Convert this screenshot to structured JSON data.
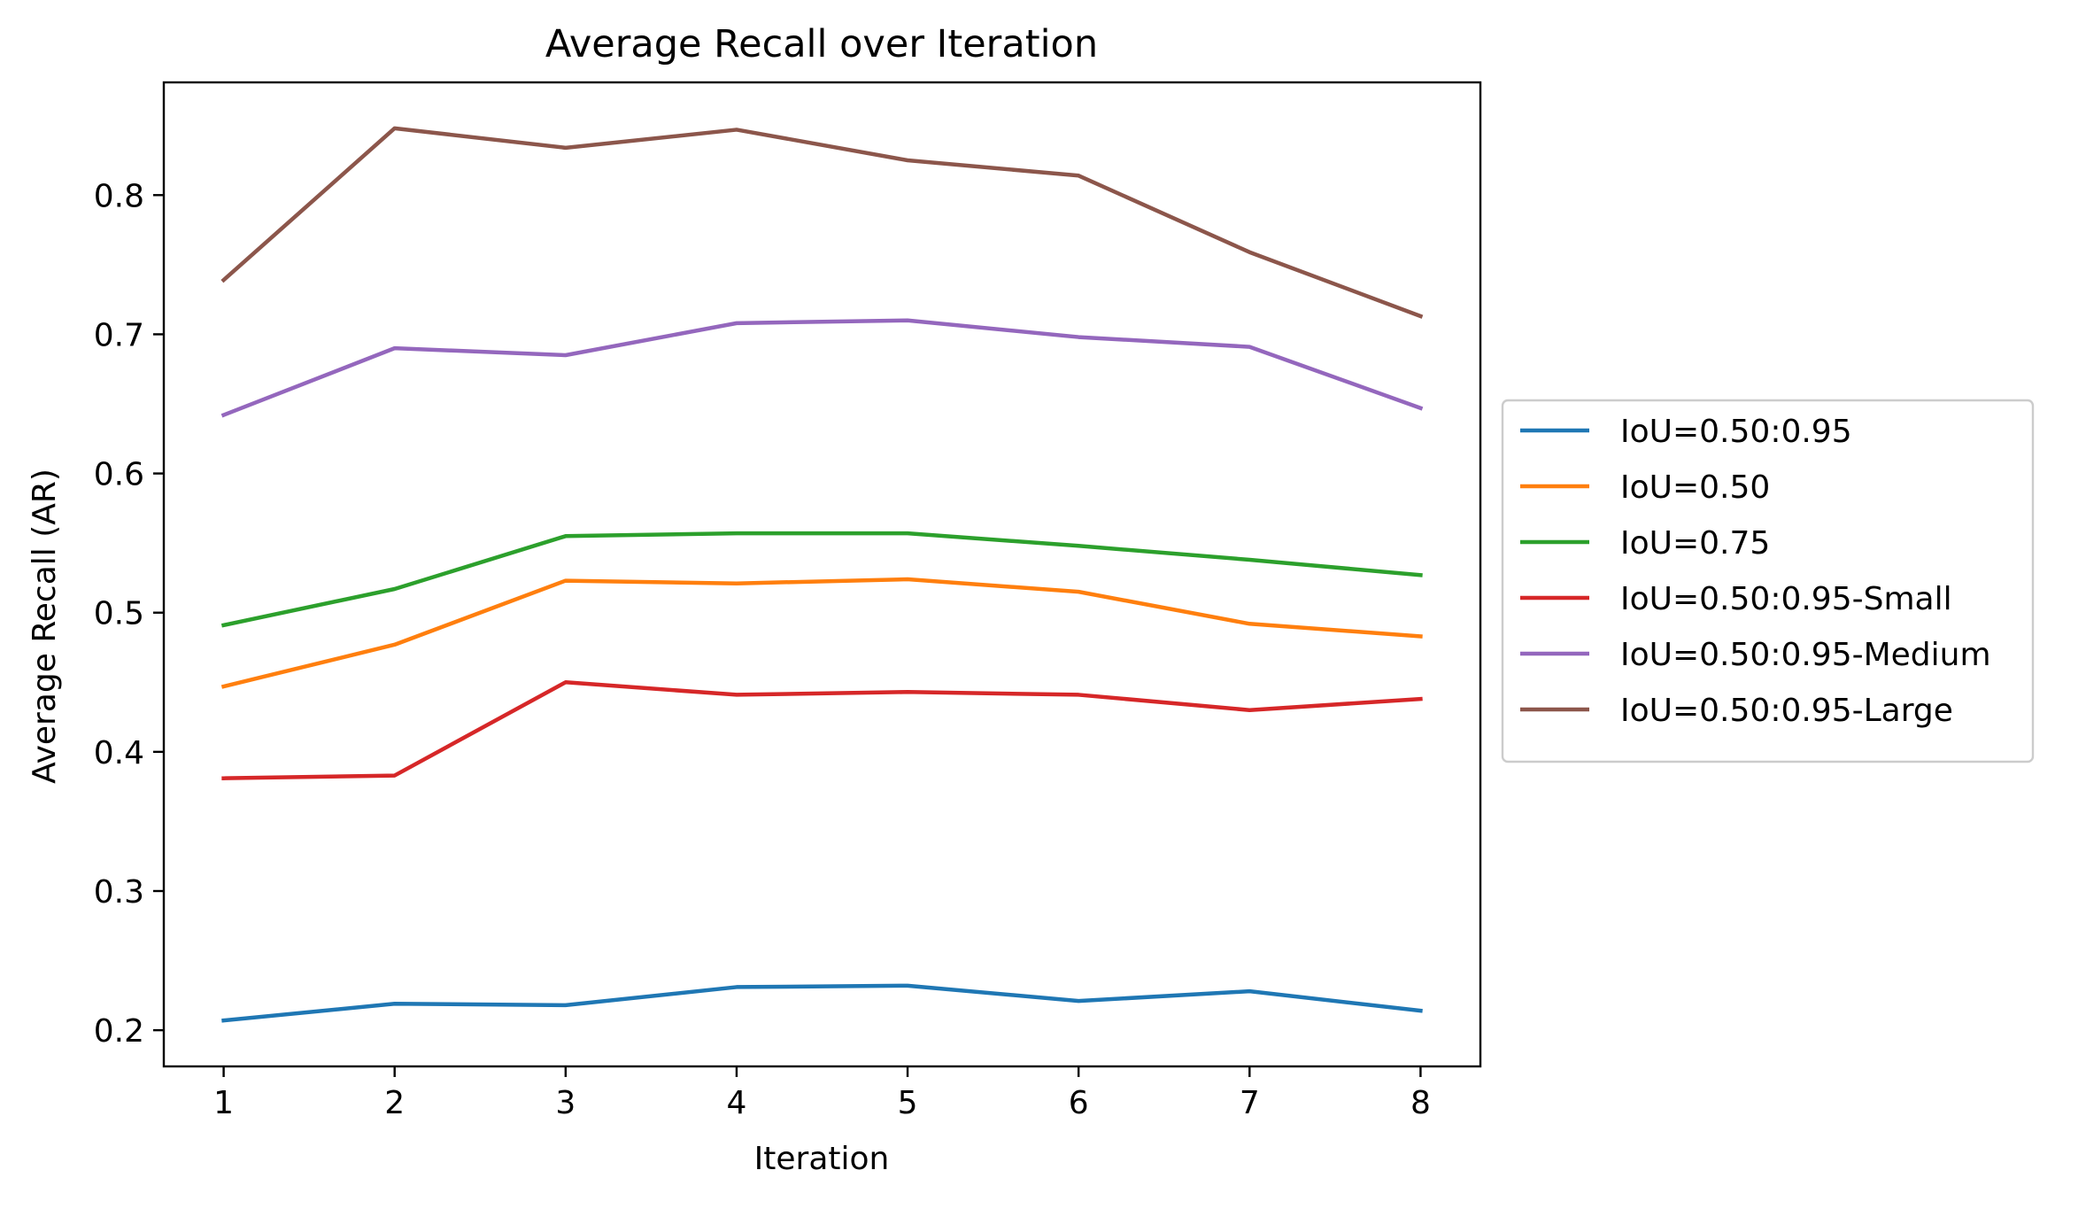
{
  "chart_data": {
    "type": "line",
    "title": "Average Recall over Iteration",
    "xlabel": "Iteration",
    "ylabel": "Average Recall (AR)",
    "x": [
      1,
      2,
      3,
      4,
      5,
      6,
      7,
      8
    ],
    "xticks": [
      "1",
      "2",
      "3",
      "4",
      "5",
      "6",
      "7",
      "8"
    ],
    "yticks": [
      "0.2",
      "0.3",
      "0.4",
      "0.5",
      "0.6",
      "0.7",
      "0.8"
    ],
    "xlim": [
      0.65,
      8.35
    ],
    "ylim": [
      0.174,
      0.881
    ],
    "grid": false,
    "legend_position": "center-right-outside",
    "series": [
      {
        "name": "IoU=0.50:0.95",
        "color": "#1f77b4",
        "values": [
          0.207,
          0.219,
          0.218,
          0.231,
          0.232,
          0.221,
          0.228,
          0.214
        ]
      },
      {
        "name": "IoU=0.50",
        "color": "#ff7f0e",
        "values": [
          0.447,
          0.477,
          0.523,
          0.521,
          0.524,
          0.515,
          0.492,
          0.483
        ]
      },
      {
        "name": "IoU=0.75",
        "color": "#2ca02c",
        "values": [
          0.491,
          0.517,
          0.555,
          0.557,
          0.557,
          0.548,
          0.538,
          0.527
        ]
      },
      {
        "name": "IoU=0.50:0.95-Small",
        "color": "#d62728",
        "values": [
          0.381,
          0.383,
          0.45,
          0.441,
          0.443,
          0.441,
          0.43,
          0.438
        ]
      },
      {
        "name": "IoU=0.50:0.95-Medium",
        "color": "#9467bd",
        "values": [
          0.642,
          0.69,
          0.685,
          0.708,
          0.71,
          0.698,
          0.691,
          0.647
        ]
      },
      {
        "name": "IoU=0.50:0.95-Large",
        "color": "#8c564b",
        "values": [
          0.739,
          0.848,
          0.834,
          0.847,
          0.825,
          0.814,
          0.759,
          0.713
        ]
      }
    ]
  }
}
